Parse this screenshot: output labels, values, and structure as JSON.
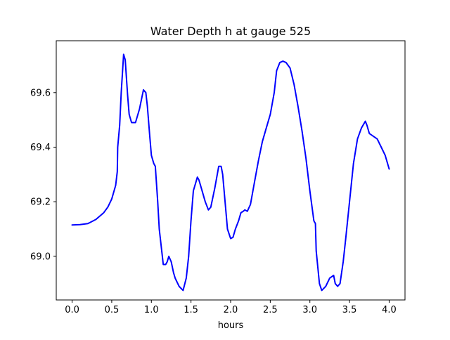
{
  "chart_data": {
    "type": "line",
    "title": "Water Depth h at gauge 525",
    "xlabel": "hours",
    "ylabel": "",
    "xlim": [
      -0.2,
      4.2
    ],
    "ylim": [
      68.84,
      69.79
    ],
    "xticks": [
      0.0,
      0.5,
      1.0,
      1.5,
      2.0,
      2.5,
      3.0,
      3.5,
      4.0
    ],
    "xtick_labels": [
      "0.0",
      "0.5",
      "1.0",
      "1.5",
      "2.0",
      "2.5",
      "3.0",
      "3.5",
      "4.0"
    ],
    "yticks": [
      69.0,
      69.2,
      69.4,
      69.6
    ],
    "ytick_labels": [
      "69.0",
      "69.2",
      "69.4",
      "69.6"
    ],
    "grid": false,
    "legend": "none",
    "series": [
      {
        "color": "#0000ff",
        "x": [
          0.0,
          0.1,
          0.2,
          0.3,
          0.4,
          0.45,
          0.5,
          0.55,
          0.57,
          0.575,
          0.6,
          0.62,
          0.65,
          0.67,
          0.7,
          0.72,
          0.75,
          0.8,
          0.85,
          0.9,
          0.93,
          0.95,
          0.98,
          1.0,
          1.03,
          1.05,
          1.08,
          1.1,
          1.15,
          1.18,
          1.2,
          1.22,
          1.25,
          1.28,
          1.3,
          1.35,
          1.4,
          1.44,
          1.47,
          1.5,
          1.53,
          1.58,
          1.6,
          1.63,
          1.68,
          1.72,
          1.75,
          1.8,
          1.85,
          1.88,
          1.9,
          1.93,
          1.96,
          2.0,
          2.03,
          2.06,
          2.1,
          2.13,
          2.16,
          2.18,
          2.21,
          2.25,
          2.3,
          2.35,
          2.4,
          2.45,
          2.5,
          2.55,
          2.58,
          2.62,
          2.66,
          2.7,
          2.75,
          2.8,
          2.85,
          2.9,
          2.95,
          3.0,
          3.05,
          3.07,
          3.08,
          3.1,
          3.12,
          3.15,
          3.2,
          3.25,
          3.3,
          3.32,
          3.35,
          3.38,
          3.42,
          3.45,
          3.5,
          3.55,
          3.6,
          3.65,
          3.7,
          3.72,
          3.75,
          3.8,
          3.85,
          3.9,
          3.95,
          4.0
        ],
        "y": [
          69.115,
          69.116,
          69.12,
          69.135,
          69.16,
          69.18,
          69.21,
          69.26,
          69.31,
          69.4,
          69.48,
          69.6,
          69.74,
          69.72,
          69.59,
          69.52,
          69.49,
          69.49,
          69.54,
          69.61,
          69.6,
          69.55,
          69.44,
          69.37,
          69.34,
          69.33,
          69.2,
          69.1,
          68.97,
          68.97,
          68.98,
          69.0,
          68.98,
          68.94,
          68.92,
          68.89,
          68.875,
          68.92,
          69.0,
          69.13,
          69.24,
          69.29,
          69.28,
          69.25,
          69.2,
          69.17,
          69.18,
          69.25,
          69.33,
          69.33,
          69.3,
          69.2,
          69.1,
          69.065,
          69.07,
          69.1,
          69.13,
          69.16,
          69.165,
          69.17,
          69.165,
          69.19,
          69.27,
          69.35,
          69.42,
          69.47,
          69.52,
          69.6,
          69.68,
          69.71,
          69.715,
          69.71,
          69.69,
          69.63,
          69.55,
          69.46,
          69.36,
          69.24,
          69.13,
          69.12,
          69.02,
          68.96,
          68.9,
          68.875,
          68.89,
          68.92,
          68.93,
          68.9,
          68.89,
          68.9,
          68.98,
          69.06,
          69.2,
          69.34,
          69.43,
          69.47,
          69.495,
          69.48,
          69.45,
          69.44,
          69.43,
          69.4,
          69.37,
          69.32
        ]
      }
    ]
  }
}
